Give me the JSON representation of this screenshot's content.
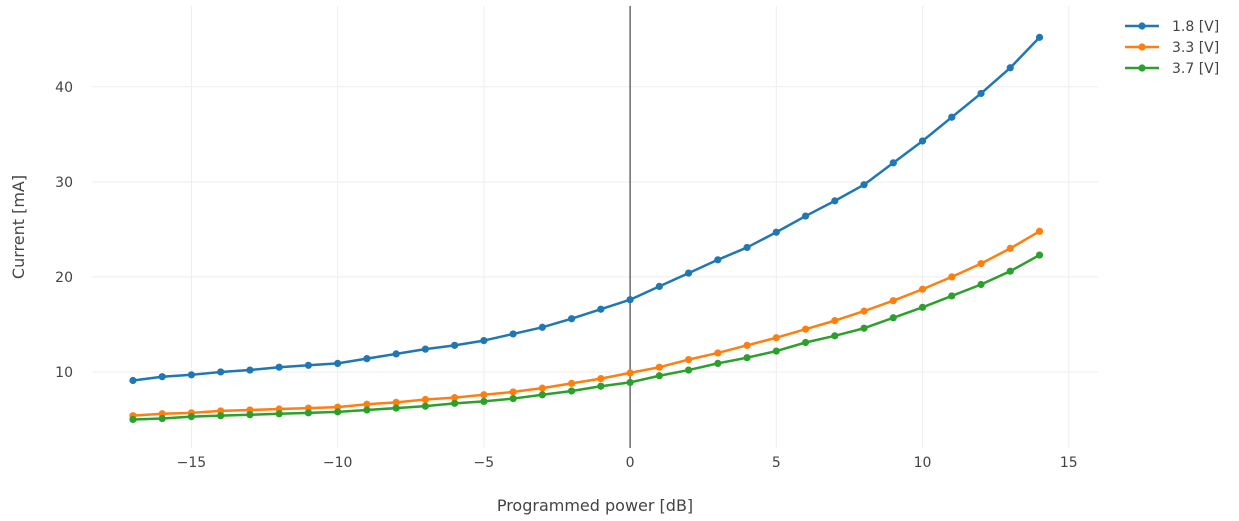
{
  "chart_data": {
    "type": "line",
    "title": "",
    "xlabel": "Programmed power [dB]",
    "ylabel": "Current [mA]",
    "xlim": [
      -18.4,
      16.0
    ],
    "ylim": [
      2.0,
      48.5
    ],
    "xticks": [
      -15,
      -10,
      -5,
      0,
      5,
      10,
      15
    ],
    "xtick_labels": [
      "−15",
      "−10",
      "−5",
      "0",
      "5",
      "10",
      "15"
    ],
    "yticks": [
      10,
      20,
      30,
      40
    ],
    "ytick_labels": [
      "10",
      "20",
      "30",
      "40"
    ],
    "grid": true,
    "zero_line": true,
    "legend_position": "top-right",
    "x": [
      -17,
      -16,
      -15,
      -14,
      -13,
      -12,
      -11,
      -10,
      -9,
      -8,
      -7,
      -6,
      -5,
      -4,
      -3,
      -2,
      -1,
      0,
      1,
      2,
      3,
      4,
      5,
      6,
      7,
      8,
      9,
      10,
      11,
      12,
      13,
      14
    ],
    "series": [
      {
        "name": "1.8 [V]",
        "color": "#1f77b4",
        "values": [
          9.1,
          9.5,
          9.7,
          10.0,
          10.2,
          10.5,
          10.7,
          10.9,
          11.4,
          11.9,
          12.4,
          12.8,
          13.3,
          14.0,
          14.7,
          15.6,
          16.6,
          17.6,
          19.0,
          20.4,
          21.8,
          23.1,
          24.7,
          26.4,
          28.0,
          29.7,
          32.0,
          34.3,
          36.8,
          39.3,
          42.0,
          45.2
        ]
      },
      {
        "name": "3.3 [V]",
        "color": "#ff7f0e",
        "values": [
          5.4,
          5.6,
          5.7,
          5.9,
          6.0,
          6.1,
          6.2,
          6.3,
          6.6,
          6.8,
          7.1,
          7.3,
          7.6,
          7.9,
          8.3,
          8.8,
          9.3,
          9.9,
          10.5,
          11.3,
          12.0,
          12.8,
          13.6,
          14.5,
          15.4,
          16.4,
          17.5,
          18.7,
          20.0,
          21.4,
          23.0,
          24.8
        ]
      },
      {
        "name": "3.7 [V]",
        "color": "#2ca02c",
        "values": [
          5.0,
          5.1,
          5.3,
          5.4,
          5.5,
          5.6,
          5.7,
          5.8,
          6.0,
          6.2,
          6.4,
          6.7,
          6.9,
          7.2,
          7.6,
          8.0,
          8.5,
          8.9,
          9.6,
          10.2,
          10.9,
          11.5,
          12.2,
          13.1,
          13.8,
          14.6,
          15.7,
          16.8,
          18.0,
          19.2,
          20.6,
          22.3
        ]
      }
    ]
  }
}
